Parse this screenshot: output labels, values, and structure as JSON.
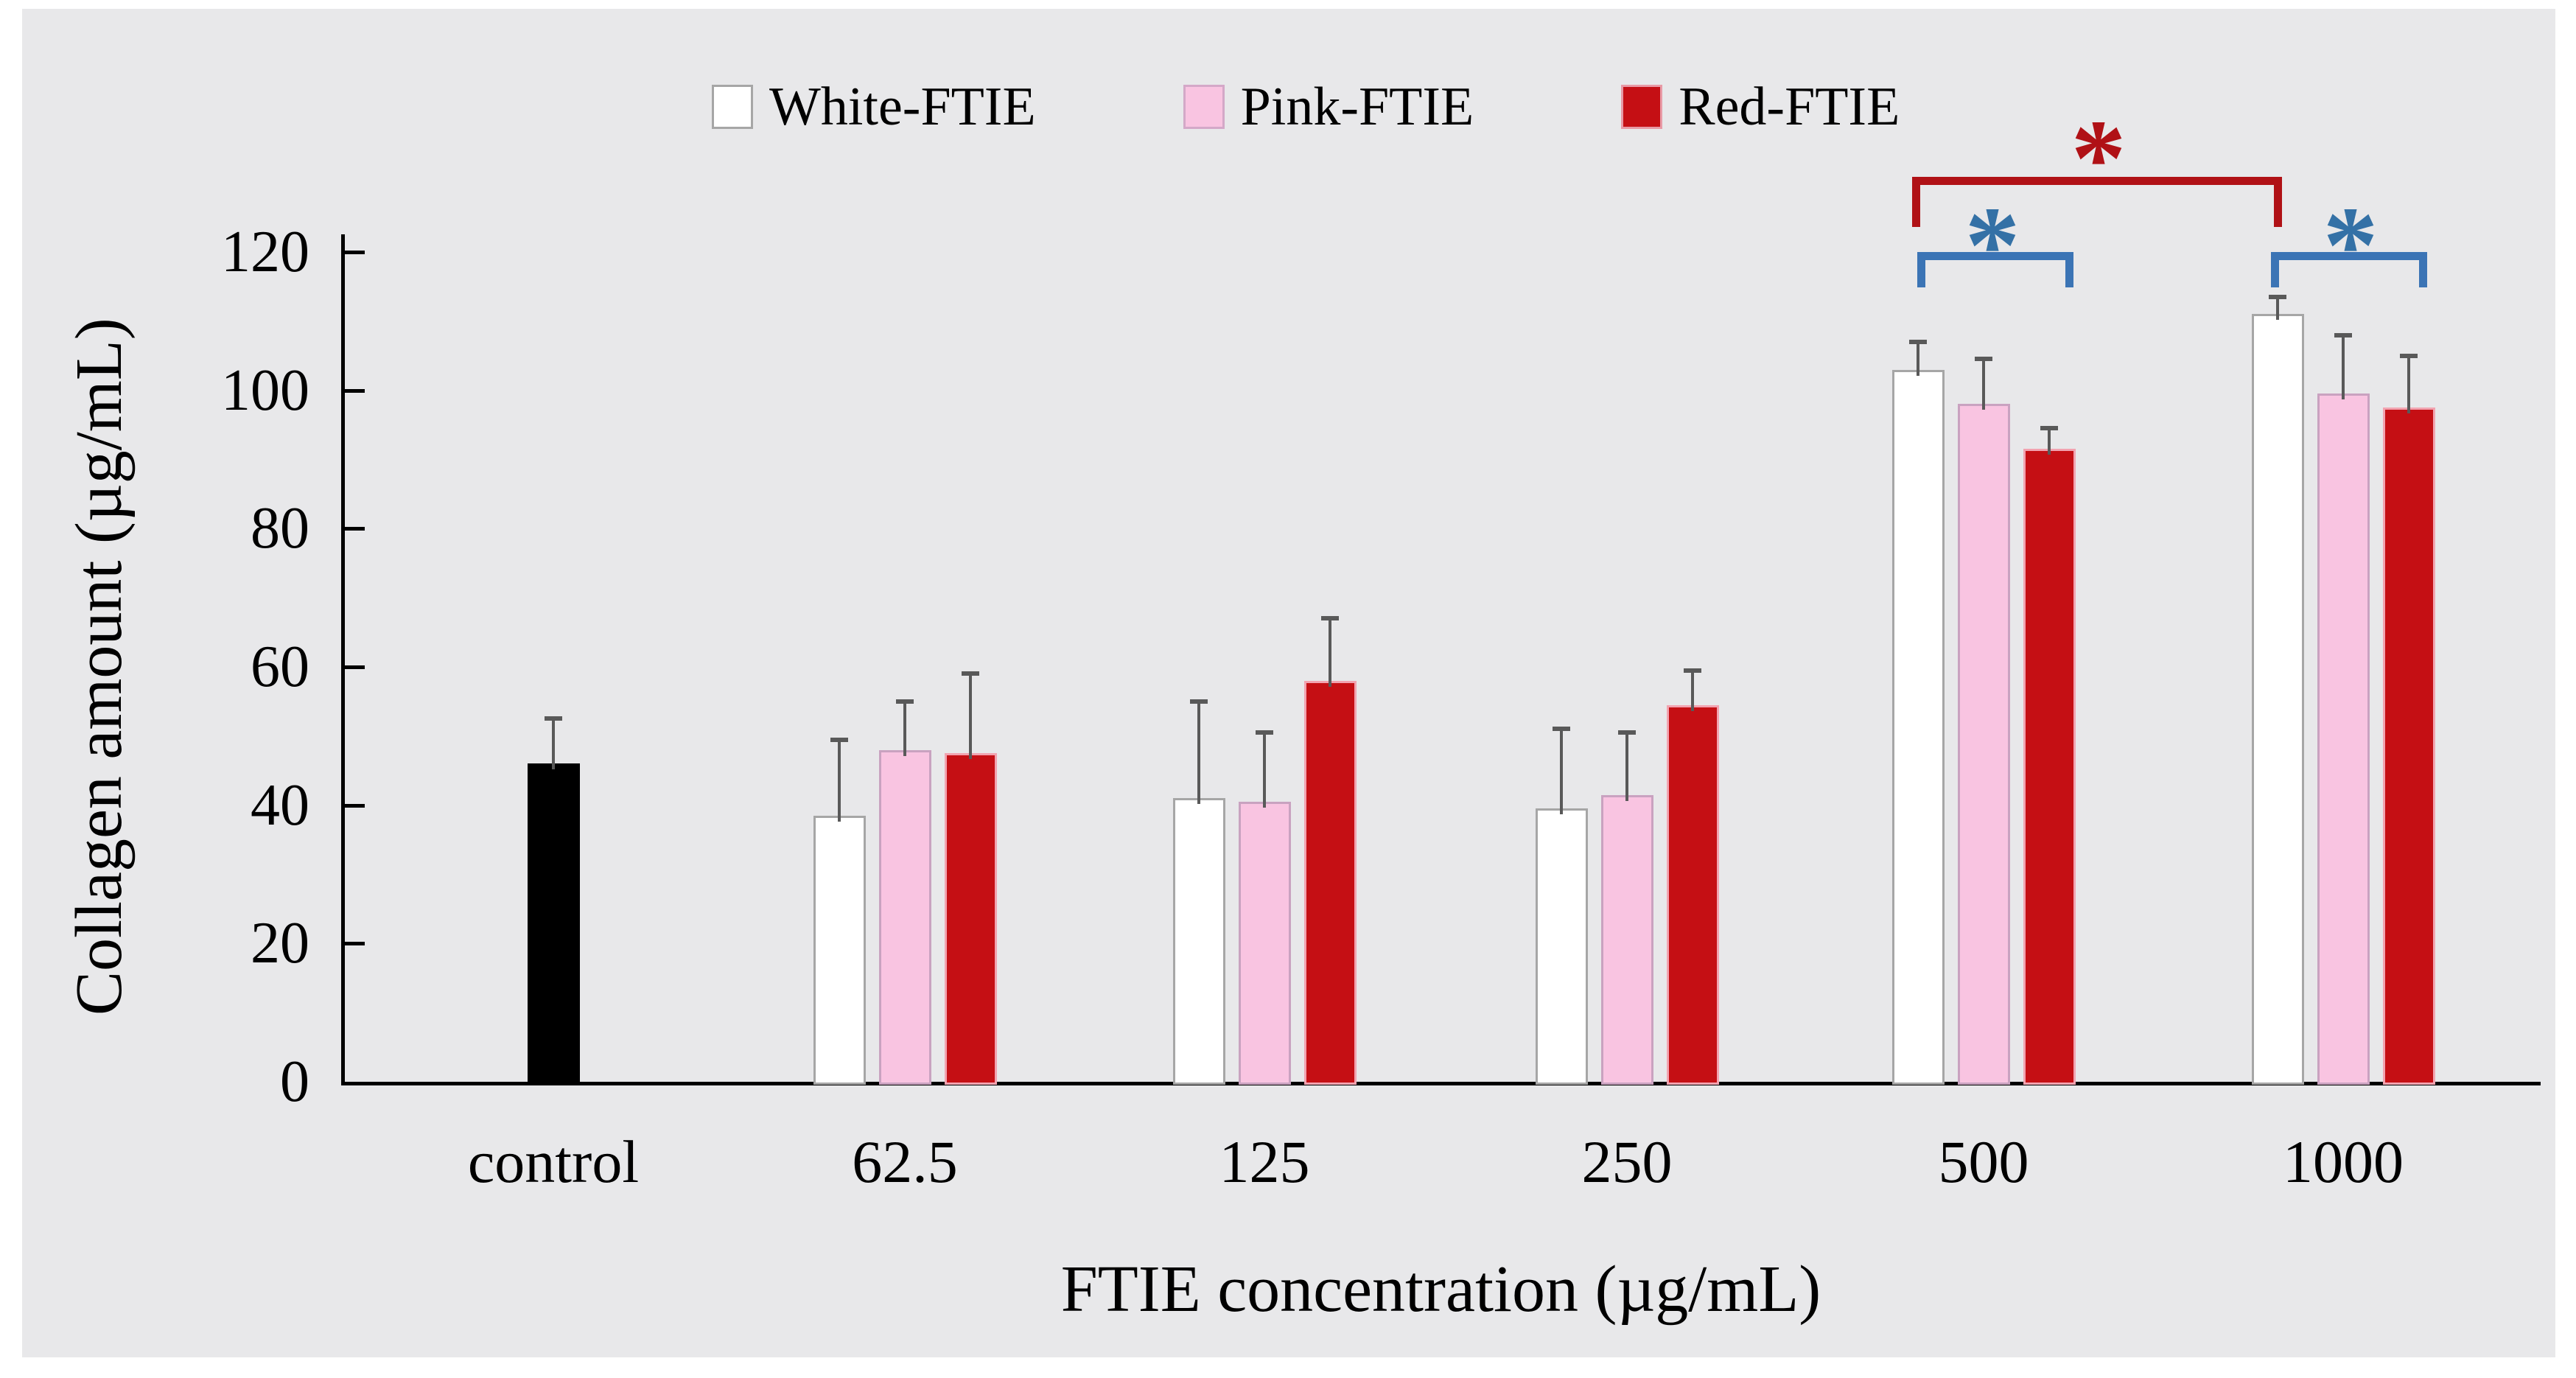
{
  "legend": {
    "items": [
      {
        "label": "White-FTIE",
        "color_key": "white",
        "swatch": "white-swatch"
      },
      {
        "label": "Pink-FTIE",
        "color_key": "pink",
        "swatch": "pink-swatch"
      },
      {
        "label": "Red-FTIE",
        "color_key": "red",
        "swatch": "red-swatch"
      }
    ]
  },
  "colors": {
    "panel_background": "#e8e8ea",
    "white_bar_fill": "#ffffff",
    "white_bar_border": "#a6a6a6",
    "pink_bar_fill": "#f9c4e1",
    "pink_bar_border": "#c9a2c0",
    "red_bar_fill": "#c50f14",
    "red_bar_border": "#f2a3b0",
    "control_bar_fill": "#000000",
    "error_bar": "#595959",
    "sig_blue": "#3b74b5",
    "sig_red": "#b01116",
    "axis": "#000000"
  },
  "chart_data": {
    "type": "bar",
    "title": "",
    "xlabel": "FTIE concentration (µg/mL)",
    "ylabel": "Collagen amount (µg/mL)",
    "ylim": [
      0,
      120
    ],
    "yticks": [
      0,
      20,
      40,
      60,
      80,
      100,
      120
    ],
    "grid": false,
    "legend_position": "top-center",
    "categories": [
      "control",
      "62.5",
      "125",
      "250",
      "500",
      "1000"
    ],
    "groups": [
      {
        "category": "control",
        "bars": [
          {
            "series": "control",
            "color_key": "control",
            "value": 46,
            "error": 6.5
          }
        ]
      },
      {
        "category": "62.5",
        "bars": [
          {
            "series": "White-FTIE",
            "color_key": "white",
            "value": 38.5,
            "error": 11
          },
          {
            "series": "Pink-FTIE",
            "color_key": "pink",
            "value": 48,
            "error": 7
          },
          {
            "series": "Red-FTIE",
            "color_key": "red",
            "value": 47.5,
            "error": 11.5
          }
        ]
      },
      {
        "category": "125",
        "bars": [
          {
            "series": "White-FTIE",
            "color_key": "white",
            "value": 41,
            "error": 14
          },
          {
            "series": "Pink-FTIE",
            "color_key": "pink",
            "value": 40.5,
            "error": 10
          },
          {
            "series": "Red-FTIE",
            "color_key": "red",
            "value": 58,
            "error": 9
          }
        ]
      },
      {
        "category": "250",
        "bars": [
          {
            "series": "White-FTIE",
            "color_key": "white",
            "value": 39.5,
            "error": 11.5
          },
          {
            "series": "Pink-FTIE",
            "color_key": "pink",
            "value": 41.5,
            "error": 9
          },
          {
            "series": "Red-FTIE",
            "color_key": "red",
            "value": 54.5,
            "error": 5
          }
        ]
      },
      {
        "category": "500",
        "bars": [
          {
            "series": "White-FTIE",
            "color_key": "white",
            "value": 103,
            "error": 4
          },
          {
            "series": "Pink-FTIE",
            "color_key": "pink",
            "value": 98,
            "error": 6.5
          },
          {
            "series": "Red-FTIE",
            "color_key": "red",
            "value": 91.5,
            "error": 3
          }
        ]
      },
      {
        "category": "1000",
        "bars": [
          {
            "series": "White-FTIE",
            "color_key": "white",
            "value": 111,
            "error": 2.5
          },
          {
            "series": "Pink-FTIE",
            "color_key": "pink",
            "value": 99.5,
            "error": 8.5
          },
          {
            "series": "Red-FTIE",
            "color_key": "red",
            "value": 97.5,
            "error": 7.5
          }
        ]
      }
    ],
    "annotations": {
      "significance": [
        {
          "symbol": "*",
          "color": "red",
          "between": [
            "500 White-FTIE",
            "1000 White-FTIE"
          ]
        },
        {
          "symbol": "*",
          "color": "blue",
          "between": [
            "500 White-FTIE",
            "500 Red-FTIE"
          ]
        },
        {
          "symbol": "*",
          "color": "blue",
          "between": [
            "1000 White-FTIE",
            "1000 Red-FTIE"
          ]
        }
      ]
    }
  }
}
